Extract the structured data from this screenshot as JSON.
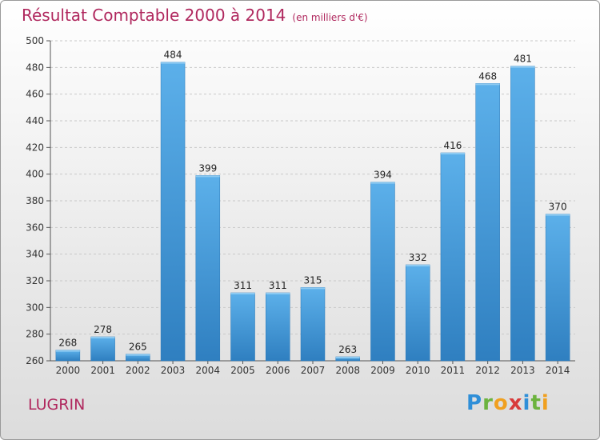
{
  "title": "Résultat Comptable 2000 à 2014",
  "unit": "(en milliers d'€)",
  "commune": "LUGRIN",
  "logo": {
    "letters": [
      {
        "char": "P",
        "color": "#2f8fd8"
      },
      {
        "char": "r",
        "color": "#6cb33e"
      },
      {
        "char": "o",
        "color": "#f0a020"
      },
      {
        "char": "x",
        "color": "#d83a3a"
      },
      {
        "char": "i",
        "color": "#2f8fd8"
      },
      {
        "char": "t",
        "color": "#6cb33e"
      },
      {
        "char": "i",
        "color": "#f0a020"
      }
    ]
  },
  "chart_data": {
    "type": "bar",
    "categories": [
      "2000",
      "2001",
      "2002",
      "2003",
      "2004",
      "2005",
      "2006",
      "2007",
      "2008",
      "2009",
      "2010",
      "2011",
      "2012",
      "2013",
      "2014"
    ],
    "values": [
      268,
      278,
      265,
      484,
      399,
      311,
      311,
      315,
      263,
      394,
      332,
      416,
      468,
      481,
      370
    ],
    "ylim": [
      260,
      500
    ],
    "yticks": [
      260,
      280,
      300,
      320,
      340,
      360,
      380,
      400,
      420,
      440,
      460,
      480,
      500
    ],
    "grid": true,
    "bar_color": "#4a9fdc"
  }
}
